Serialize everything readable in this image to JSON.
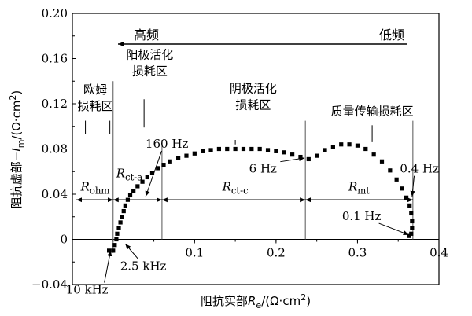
{
  "chart_data": {
    "type": "scatter",
    "xlim": [
      -0.05,
      0.4
    ],
    "ylim": [
      -0.04,
      0.2
    ],
    "xticks": [
      {
        "v": 0.1,
        "label": "0.1"
      },
      {
        "v": 0.2,
        "label": "0.2"
      },
      {
        "v": 0.3,
        "label": "0.3"
      },
      {
        "v": 0.4,
        "label": "0.4"
      }
    ],
    "yticks": [
      {
        "v": -0.04,
        "label": "−0.04"
      },
      {
        "v": 0,
        "label": "0"
      },
      {
        "v": 0.04,
        "label": "0.04"
      },
      {
        "v": 0.08,
        "label": "0.08"
      },
      {
        "v": 0.12,
        "label": "0.12"
      },
      {
        "v": 0.16,
        "label": "0.16"
      },
      {
        "v": 0.2,
        "label": "0.20"
      }
    ],
    "xlabel": {
      "main": "阻抗实部",
      "sym": "R",
      "sub": "e",
      "unit": "/(Ω·cm",
      "sup": "2",
      "close": ")"
    },
    "ylabel": {
      "main": "阻抗虚部−",
      "sym": "I",
      "sub": "m",
      "unit": "/(Ω·cm",
      "sup": "2",
      "close": ")"
    },
    "freq_direction": {
      "high": "高频",
      "low": "低频"
    },
    "points": [
      [
        -0.005,
        -0.01
      ],
      [
        0.0,
        -0.01
      ],
      [
        0.002,
        -0.005
      ],
      [
        0.004,
        0.0
      ],
      [
        0.005,
        0.005
      ],
      [
        0.007,
        0.01
      ],
      [
        0.009,
        0.015
      ],
      [
        0.011,
        0.02
      ],
      [
        0.013,
        0.025
      ],
      [
        0.015,
        0.03
      ],
      [
        0.018,
        0.035
      ],
      [
        0.021,
        0.039
      ],
      [
        0.025,
        0.043
      ],
      [
        0.03,
        0.047
      ],
      [
        0.036,
        0.051
      ],
      [
        0.042,
        0.055
      ],
      [
        0.048,
        0.059
      ],
      [
        0.055,
        0.063
      ],
      [
        0.062,
        0.066
      ],
      [
        0.07,
        0.069
      ],
      [
        0.08,
        0.072
      ],
      [
        0.09,
        0.074
      ],
      [
        0.1,
        0.076
      ],
      [
        0.11,
        0.078
      ],
      [
        0.12,
        0.079
      ],
      [
        0.13,
        0.08
      ],
      [
        0.14,
        0.08
      ],
      [
        0.15,
        0.08
      ],
      [
        0.16,
        0.08
      ],
      [
        0.17,
        0.08
      ],
      [
        0.18,
        0.08
      ],
      [
        0.19,
        0.079
      ],
      [
        0.2,
        0.078
      ],
      [
        0.21,
        0.077
      ],
      [
        0.22,
        0.075
      ],
      [
        0.23,
        0.073
      ],
      [
        0.24,
        0.071
      ],
      [
        0.25,
        0.074
      ],
      [
        0.26,
        0.079
      ],
      [
        0.27,
        0.082
      ],
      [
        0.28,
        0.084
      ],
      [
        0.29,
        0.084
      ],
      [
        0.3,
        0.083
      ],
      [
        0.31,
        0.08
      ],
      [
        0.32,
        0.075
      ],
      [
        0.33,
        0.069
      ],
      [
        0.34,
        0.061
      ],
      [
        0.348,
        0.053
      ],
      [
        0.355,
        0.045
      ],
      [
        0.36,
        0.037
      ],
      [
        0.364,
        0.03
      ],
      [
        0.366,
        0.023
      ],
      [
        0.367,
        0.016
      ],
      [
        0.367,
        0.01
      ],
      [
        0.366,
        0.005
      ],
      [
        0.363,
        0.003
      ]
    ],
    "dividers": [
      {
        "x": 0.0,
        "y_from": -0.012,
        "y_to": 0.14
      },
      {
        "x": 0.06,
        "y_from": 0.0,
        "y_to": 0.088
      },
      {
        "x": 0.236,
        "y_from": 0.0,
        "y_to": 0.105
      },
      {
        "x": 0.368,
        "y_from": 0.0,
        "y_to": 0.105
      }
    ],
    "resistance_arrows": [
      {
        "x1": -0.045,
        "x2": 0.0,
        "y": 0.035,
        "label": {
          "sym": "R",
          "sub": "ohm"
        },
        "lx": -0.022,
        "ly": 0.043
      },
      {
        "x1": 0.0,
        "x2": 0.06,
        "y": 0.035,
        "label": {
          "sym": "R",
          "sub": "ct-a"
        },
        "lx": 0.02,
        "ly": 0.055
      },
      {
        "x1": 0.06,
        "x2": 0.236,
        "y": 0.035,
        "label": {
          "sym": "R",
          "sub": "ct-c"
        },
        "lx": 0.15,
        "ly": 0.043
      },
      {
        "x1": 0.236,
        "x2": 0.368,
        "y": 0.035,
        "label": {
          "sym": "R",
          "sub": "mt"
        },
        "lx": 0.302,
        "ly": 0.043
      }
    ],
    "regions": [
      {
        "lines": [
          "欧姆",
          "损耗区"
        ],
        "x": -0.022,
        "y_top": 0.129
      },
      {
        "lines": [
          "阳极活化",
          "损耗区"
        ],
        "x": 0.045,
        "y_top": 0.16
      },
      {
        "lines": [
          "阴极活化",
          "损耗区"
        ],
        "x": 0.172,
        "y_top": 0.13
      },
      {
        "lines": [
          "质量传输损耗区"
        ],
        "x": 0.318,
        "y_top": 0.11
      }
    ],
    "freq_labels": [
      {
        "text": "160 Hz",
        "lx": 0.066,
        "ly": 0.081,
        "pt": [
          0.04,
          0.038
        ]
      },
      {
        "text": "6 Hz",
        "lx": 0.184,
        "ly": 0.059,
        "pt": [
          0.235,
          0.072
        ]
      },
      {
        "text": "0.4 Hz",
        "lx": 0.376,
        "ly": 0.059,
        "pt": [
          0.367,
          0.038
        ]
      },
      {
        "text": "0.1 Hz",
        "lx": 0.305,
        "ly": 0.017,
        "pt": [
          0.363,
          0.004
        ]
      },
      {
        "text": "2.5 kHz",
        "lx": 0.037,
        "ly": -0.027,
        "pt": [
          0.015,
          -0.004
        ]
      },
      {
        "text": "10 kHz",
        "lx": -0.032,
        "ly": -0.048,
        "pt": [
          -0.003,
          -0.01
        ]
      }
    ]
  }
}
